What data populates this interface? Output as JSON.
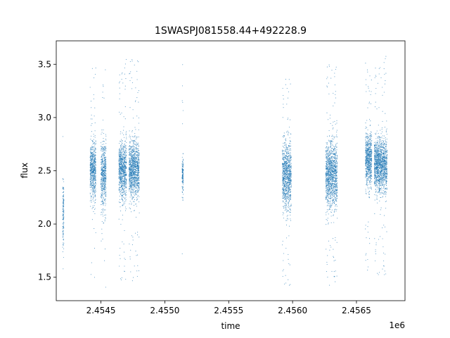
{
  "chart_data": {
    "type": "scatter",
    "title": "1SWASPJ081558.44+492228.9",
    "xlabel": "time",
    "ylabel": "flux",
    "x_offset_label": "1e6",
    "xlim": [
      2454150,
      2456880
    ],
    "ylim": [
      1.28,
      3.72
    ],
    "x_ticks": [
      2454500,
      2455000,
      2455500,
      2456000,
      2456500
    ],
    "x_tick_labels": [
      "2.4545",
      "2.4550",
      "2.4555",
      "2.4560",
      "2.4565"
    ],
    "y_ticks": [
      1.5,
      2.0,
      2.5,
      3.0,
      3.5
    ],
    "y_tick_labels": [
      "1.5",
      "2.0",
      "2.5",
      "3.0",
      "3.5"
    ],
    "grid": false,
    "marker_color": "#1f77b4",
    "clusters": [
      {
        "x_start": 2454200,
        "x_end": 2454210,
        "y_center": 2.1,
        "y_spread": 0.35
      },
      {
        "x_start": 2454415,
        "x_end": 2454460,
        "y_center": 2.5,
        "y_spread": 0.3
      },
      {
        "x_start": 2454500,
        "x_end": 2454540,
        "y_center": 2.45,
        "y_spread": 0.35
      },
      {
        "x_start": 2454640,
        "x_end": 2454700,
        "y_center": 2.5,
        "y_spread": 0.3
      },
      {
        "x_start": 2454720,
        "x_end": 2454800,
        "y_center": 2.5,
        "y_spread": 0.3
      },
      {
        "x_start": 2455135,
        "x_end": 2455145,
        "y_center": 2.45,
        "y_spread": 0.18
      },
      {
        "x_start": 2455920,
        "x_end": 2455990,
        "y_center": 2.45,
        "y_spread": 0.35
      },
      {
        "x_start": 2456260,
        "x_end": 2456350,
        "y_center": 2.45,
        "y_spread": 0.35
      },
      {
        "x_start": 2456570,
        "x_end": 2456620,
        "y_center": 2.6,
        "y_spread": 0.28
      },
      {
        "x_start": 2456640,
        "x_end": 2456740,
        "y_center": 2.55,
        "y_spread": 0.28
      }
    ]
  }
}
